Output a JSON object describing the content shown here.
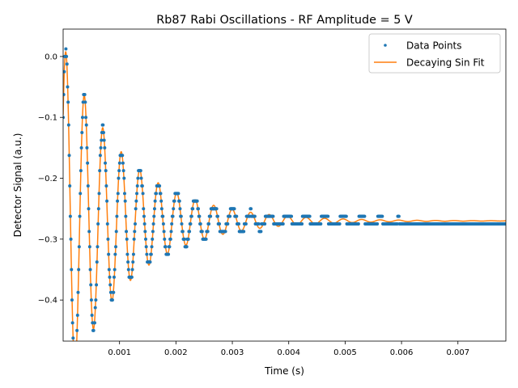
{
  "chart_data": {
    "type": "scatter",
    "title": "Rb87 Rabi Oscillations - RF Amplitude = 5 V",
    "xlabel": "Time (s)",
    "ylabel": "Detector Signal (a.u.)",
    "xlim": [
      0.0,
      0.00785
    ],
    "ylim": [
      -0.4675,
      0.045
    ],
    "x_ticks": [
      0.001,
      0.002,
      0.003,
      0.004,
      0.005,
      0.006,
      0.007
    ],
    "x_tick_labels": [
      "0.001",
      "0.002",
      "0.003",
      "0.004",
      "0.005",
      "0.006",
      "0.007"
    ],
    "y_ticks": [
      0.0,
      -0.1,
      -0.2,
      -0.3,
      -0.4
    ],
    "y_tick_labels": [
      "0.0",
      "−0.1",
      "−0.2",
      "−0.3",
      "−0.4"
    ],
    "grid": false,
    "legend_position": "top-right",
    "legend": [
      {
        "label": "Data Points",
        "kind": "marker",
        "color": "#1f77b4"
      },
      {
        "label": "Decaying Sin Fit",
        "kind": "line",
        "color": "#ff7f0e"
      }
    ],
    "series": [
      {
        "name": "Decaying Sin Fit",
        "kind": "line",
        "color": "#ff7f0e",
        "x_range": [
          0.0,
          0.00785
        ],
        "model": {
          "offset": -0.27,
          "amplitude": 0.29,
          "decay_time": 0.0011,
          "frequency": 3050,
          "phase_at_zero": 0.645
        }
      },
      {
        "name": "Data Points",
        "kind": "scatter",
        "color": "#1f77b4",
        "n_points": 800,
        "x_range": [
          0.0,
          0.00785
        ],
        "quantization": 0.0125
      }
    ]
  }
}
